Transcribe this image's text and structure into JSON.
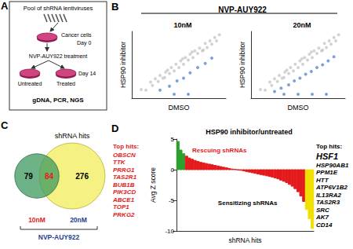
{
  "chart_data": [
    {
      "label": "A",
      "type": "diagram",
      "steps": [
        "Pool of shRNA lentiviruses",
        "Cancer cells",
        "Day 0",
        "NVP-AUY922 treatment",
        "Untreated",
        "Treated",
        "Day 14",
        "gDNA, PCR, NGS"
      ]
    },
    {
      "label": "B",
      "type": "scatter",
      "title": "NVP-AUY922",
      "panels": [
        {
          "title": "10nM",
          "type": "scatter",
          "xlabel": "DMSO",
          "ylabel": "HSP90 inhibitor",
          "xlim": [
            0,
            10
          ],
          "ylim": [
            0,
            10
          ],
          "tick_labels": false,
          "grid": false,
          "series": [
            {
              "color": "#c8c8c8",
              "x": [
                1.0,
                1.5,
                2.0,
                2.2,
                2.5,
                2.8,
                3.0,
                3.3,
                3.5,
                3.8,
                4.0,
                4.2,
                4.5,
                4.7,
                5.0,
                5.2,
                5.5,
                5.7,
                6.0,
                6.2,
                6.5,
                6.7,
                7.0,
                7.2,
                7.5,
                7.8,
                8.0,
                8.3,
                8.5,
                8.8,
                9.0,
                9.3,
                3.6,
                5.4,
                6.4,
                7.6
              ],
              "values": [
                1.3,
                1.2,
                2.4,
                1.9,
                2.9,
                2.5,
                3.4,
                3.0,
                3.1,
                4.2,
                3.7,
                4.6,
                4.1,
                5.1,
                4.6,
                5.6,
                5.1,
                6.1,
                5.7,
                6.6,
                6.1,
                7.1,
                6.7,
                7.5,
                7.1,
                8.2,
                7.6,
                8.6,
                8.1,
                9.1,
                8.6,
                9.5,
                3.9,
                5.9,
                6.9,
                7.2
              ]
            },
            {
              "color": "#5b8bd0",
              "x": [
                3.0,
                4.0,
                4.8,
                5.5,
                6.2,
                7.0,
                7.8,
                8.5,
                4.5,
                6.0
              ],
              "values": [
                1.2,
                1.8,
                2.6,
                3.0,
                3.8,
                4.6,
                5.2,
                6.0,
                0.6,
                0.6
              ]
            }
          ]
        },
        {
          "title": "20nM",
          "type": "scatter",
          "xlabel": "DMSO",
          "ylabel": "HSP90 inhibitor",
          "xlim": [
            0,
            10
          ],
          "ylim": [
            0,
            10
          ],
          "tick_labels": false,
          "grid": false,
          "series": [
            {
              "color": "#c8c8c8",
              "x": [
                1.0,
                1.5,
                2.0,
                2.2,
                2.5,
                2.8,
                3.0,
                3.3,
                3.5,
                3.8,
                4.0,
                4.2,
                4.5,
                4.7,
                5.0,
                5.2,
                5.5,
                5.7,
                6.0,
                6.2,
                6.5,
                6.7,
                7.0,
                7.2,
                7.5,
                7.8,
                8.0,
                8.3,
                8.5,
                8.8,
                9.0,
                9.3,
                3.6,
                5.4,
                6.4,
                7.6
              ],
              "values": [
                1.3,
                1.2,
                2.4,
                1.9,
                2.9,
                2.5,
                3.4,
                3.0,
                3.1,
                4.2,
                3.7,
                4.6,
                4.1,
                5.1,
                4.6,
                5.6,
                5.1,
                6.1,
                5.7,
                6.6,
                6.1,
                7.1,
                6.7,
                7.5,
                7.1,
                8.2,
                7.6,
                8.6,
                8.1,
                9.1,
                8.6,
                9.5,
                3.9,
                5.9,
                6.9,
                7.2
              ]
            },
            {
              "color": "#5b8bd0",
              "x": [
                2.5,
                3.2,
                4.0,
                4.6,
                5.2,
                5.8,
                6.4,
                7.0,
                7.6,
                8.2,
                8.8,
                3.5,
                5.0,
                6.5,
                8.0
              ],
              "values": [
                1.0,
                1.5,
                2.0,
                2.6,
                3.0,
                3.6,
                4.0,
                4.6,
                5.0,
                5.6,
                6.2,
                0.6,
                0.6,
                0.6,
                0.6
              ]
            }
          ]
        }
      ]
    },
    {
      "label": "C",
      "type": "venn",
      "title": "shRNA hits",
      "xlabel": "NVP-AUY922",
      "sets": [
        {
          "name": "10nM",
          "color": "#3c9a5f"
        },
        {
          "name": "20nM",
          "color": "#f3ef6d"
        }
      ],
      "values": {
        "only_10nM": 79,
        "both": 84,
        "only_20nM": 276
      }
    },
    {
      "label": "D",
      "type": "bar",
      "title": "HSP90 inhibitor/untreated",
      "ylabel": "Avg Z score",
      "xlabel": "shRNA hits",
      "categories": [
        null,
        null,
        null,
        null,
        null,
        null,
        null,
        null,
        null,
        null,
        null,
        null,
        null,
        null,
        null,
        null,
        null,
        null,
        null,
        null,
        null,
        null,
        null,
        null,
        null,
        null,
        null,
        null,
        null,
        null,
        null,
        null,
        null,
        null,
        null,
        null,
        null,
        null,
        null,
        null,
        null,
        null,
        null,
        null,
        null,
        null,
        null,
        null
      ],
      "values": [
        4.6,
        3.2,
        2.6,
        2.2,
        1.9,
        1.7,
        1.5,
        1.35,
        1.2,
        1.1,
        1.0,
        0.9,
        0.8,
        0.7,
        0.6,
        0.5,
        0.4,
        0.3,
        0.2,
        0.1,
        0.05,
        -0.05,
        -0.1,
        -0.2,
        -0.3,
        -0.4,
        -0.5,
        -0.6,
        -0.7,
        -0.8,
        -0.9,
        -1.0,
        -1.1,
        -1.2,
        -1.35,
        -1.5,
        -1.7,
        -1.9,
        -2.1,
        -2.4,
        -2.7,
        -3.1,
        -3.6,
        -4.3,
        -5.2,
        -6.5,
        -8.0,
        -9.6
      ],
      "colors": [
        "#2ca02c",
        "#2ca02c",
        "#2ca02c",
        "#e31a1c",
        "#e31a1c",
        "#e31a1c",
        "#e31a1c",
        "#e31a1c",
        "#e31a1c",
        "#e31a1c",
        "#e31a1c",
        "#e31a1c",
        "#e31a1c",
        "#e31a1c",
        "#e31a1c",
        "#e31a1c",
        "#e31a1c",
        "#e31a1c",
        "#e31a1c",
        "#e31a1c",
        "#e31a1c",
        "#e31a1c",
        "#e31a1c",
        "#e31a1c",
        "#e31a1c",
        "#e31a1c",
        "#e31a1c",
        "#e31a1c",
        "#e31a1c",
        "#e31a1c",
        "#e31a1c",
        "#e31a1c",
        "#e31a1c",
        "#e31a1c",
        "#e31a1c",
        "#e31a1c",
        "#e31a1c",
        "#e31a1c",
        "#e31a1c",
        "#e31a1c",
        "#e31a1c",
        "#e31a1c",
        "#e31a1c",
        "#e31a1c",
        "#e31a1c",
        "#f0e000",
        "#f0e000",
        "#f0e000"
      ],
      "ylim": [
        -10,
        5
      ],
      "yticks": [
        -10,
        -5,
        0,
        5
      ],
      "tick_labels": "y",
      "grid": false,
      "annotations": [
        {
          "text": "Rescuing shRNAs",
          "color": "#e31a1c"
        },
        {
          "text": "Sensitizing shRNAs",
          "color": "#000000"
        }
      ],
      "top_hits": [
        {
          "title": "Top hits:",
          "color": "#e31a1c",
          "genes": [
            "OBSCN",
            "TTK",
            "PRRG1",
            "TAS2R1",
            "BUB1B",
            "PIK3CD",
            "ABCE1",
            "TOP1",
            "PRKG2"
          ]
        },
        {
          "title": "Top hits:",
          "color": "#000000",
          "genes": [
            "HSF1",
            "HSP90AB1",
            "PPM1E",
            "HTT",
            "ATP6V1B2",
            "IL13RA2",
            "TAS2R3",
            "SRC",
            "AK7",
            "CD14"
          ]
        }
      ]
    }
  ]
}
